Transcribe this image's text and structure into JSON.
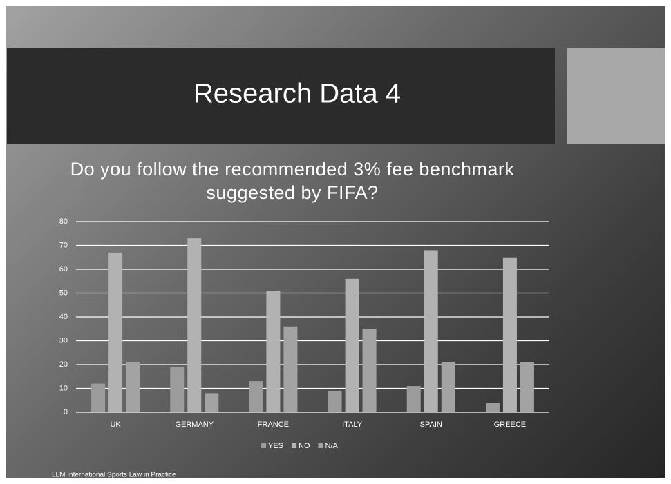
{
  "slide": {
    "title": "Research Data 4",
    "footer": "LLM International Sports Law in Practice"
  },
  "chart_data": {
    "type": "bar",
    "title": "Do you follow the recommended 3% fee benchmark suggested by FIFA?",
    "categories": [
      "UK",
      "GERMANY",
      "FRANCE",
      "ITALY",
      "SPAIN",
      "GREECE"
    ],
    "series": [
      {
        "name": "YES",
        "color": "#9c9c9c",
        "values": [
          12,
          19,
          13,
          9,
          11,
          4
        ]
      },
      {
        "name": "NO",
        "color": "#b2b2b2",
        "values": [
          67,
          73,
          51,
          56,
          68,
          65
        ]
      },
      {
        "name": "N/A",
        "color": "#a3a3a3",
        "values": [
          21,
          8,
          36,
          35,
          21,
          21
        ]
      }
    ],
    "ylim": [
      0,
      80
    ],
    "yticks": [
      0,
      10,
      20,
      30,
      40,
      50,
      60,
      70,
      80
    ],
    "grid": true,
    "legend": "bottom"
  }
}
